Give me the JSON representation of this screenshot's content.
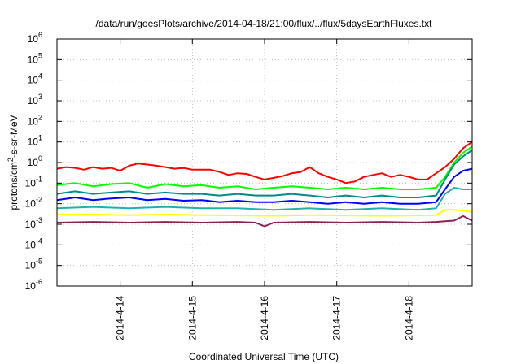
{
  "chart_data": {
    "type": "line",
    "title": "/data/run/goesPlots/archive/2014-04-18/21:00/flux/../flux/5daysEarthFluxes.txt",
    "xlabel": "Coordinated Universal Time (UTC)",
    "ylabel": {
      "base": "protons/cm",
      "sup": "2",
      "rest": "-s-sr-MeV"
    },
    "y_scale": "log",
    "ylim_exp": [
      -6,
      6
    ],
    "y_ticks": [
      {
        "exp": -6,
        "label_base": "10",
        "label_exp": "-6"
      },
      {
        "exp": -5,
        "label_base": "10",
        "label_exp": "-5"
      },
      {
        "exp": -4,
        "label_base": "10",
        "label_exp": "-4"
      },
      {
        "exp": -3,
        "label_base": "10",
        "label_exp": "-3"
      },
      {
        "exp": -2,
        "label_base": "10",
        "label_exp": "-2"
      },
      {
        "exp": -1,
        "label_base": "10",
        "label_exp": "-1"
      },
      {
        "exp": 0,
        "label_base": "10",
        "label_exp": "0"
      },
      {
        "exp": 1,
        "label_base": "10",
        "label_exp": "1"
      },
      {
        "exp": 2,
        "label_base": "10",
        "label_exp": "2"
      },
      {
        "exp": 3,
        "label_base": "10",
        "label_exp": "3"
      },
      {
        "exp": 4,
        "label_base": "10",
        "label_exp": "4"
      },
      {
        "exp": 5,
        "label_base": "10",
        "label_exp": "5"
      },
      {
        "exp": 6,
        "label_base": "10",
        "label_exp": "6"
      }
    ],
    "xlim": [
      "2014-04-13T03:00",
      "2014-04-18T21:00"
    ],
    "x_ticks": [
      {
        "value": "2014-04-14T00:00",
        "label": "2014-4-14"
      },
      {
        "value": "2014-04-15T00:00",
        "label": "2014-4-15"
      },
      {
        "value": "2014-04-16T00:00",
        "label": "2014-4-16"
      },
      {
        "value": "2014-04-17T00:00",
        "label": "2014-4-17"
      },
      {
        "value": "2014-04-18T00:00",
        "label": "2014-4-18"
      }
    ],
    "grid": true,
    "legend": "none",
    "series": [
      {
        "color": "#ff0000",
        "points": [
          [
            "2014-04-13T03:00",
            0.5
          ],
          [
            "2014-04-13T06:00",
            0.6
          ],
          [
            "2014-04-13T09:00",
            0.55
          ],
          [
            "2014-04-13T12:00",
            0.45
          ],
          [
            "2014-04-13T15:00",
            0.6
          ],
          [
            "2014-04-13T18:00",
            0.5
          ],
          [
            "2014-04-13T21:00",
            0.55
          ],
          [
            "2014-04-14T00:00",
            0.4
          ],
          [
            "2014-04-14T03:00",
            0.7
          ],
          [
            "2014-04-14T06:00",
            0.9
          ],
          [
            "2014-04-14T09:00",
            0.8
          ],
          [
            "2014-04-14T12:00",
            0.7
          ],
          [
            "2014-04-14T15:00",
            0.6
          ],
          [
            "2014-04-14T18:00",
            0.5
          ],
          [
            "2014-04-14T21:00",
            0.55
          ],
          [
            "2014-04-15T00:00",
            0.45
          ],
          [
            "2014-04-15T03:00",
            0.45
          ],
          [
            "2014-04-15T06:00",
            0.45
          ],
          [
            "2014-04-15T09:00",
            0.35
          ],
          [
            "2014-04-15T12:00",
            0.25
          ],
          [
            "2014-04-15T15:00",
            0.3
          ],
          [
            "2014-04-15T18:00",
            0.28
          ],
          [
            "2014-04-15T21:00",
            0.2
          ],
          [
            "2014-04-16T00:00",
            0.15
          ],
          [
            "2014-04-16T03:00",
            0.18
          ],
          [
            "2014-04-16T06:00",
            0.22
          ],
          [
            "2014-04-16T09:00",
            0.3
          ],
          [
            "2014-04-16T12:00",
            0.35
          ],
          [
            "2014-04-16T15:00",
            0.6
          ],
          [
            "2014-04-16T18:00",
            0.3
          ],
          [
            "2014-04-16T21:00",
            0.2
          ],
          [
            "2014-04-17T00:00",
            0.15
          ],
          [
            "2014-04-17T03:00",
            0.1
          ],
          [
            "2014-04-17T06:00",
            0.12
          ],
          [
            "2014-04-17T09:00",
            0.2
          ],
          [
            "2014-04-17T12:00",
            0.25
          ],
          [
            "2014-04-17T15:00",
            0.3
          ],
          [
            "2014-04-17T18:00",
            0.2
          ],
          [
            "2014-04-17T21:00",
            0.25
          ],
          [
            "2014-04-18T00:00",
            0.2
          ],
          [
            "2014-04-18T03:00",
            0.15
          ],
          [
            "2014-04-18T06:00",
            0.15
          ],
          [
            "2014-04-18T09:00",
            0.3
          ],
          [
            "2014-04-18T12:00",
            0.6
          ],
          [
            "2014-04-18T15:00",
            1.5
          ],
          [
            "2014-04-18T18:00",
            5
          ],
          [
            "2014-04-18T21:00",
            10
          ]
        ]
      },
      {
        "color": "#00ff00",
        "points": [
          [
            "2014-04-13T03:00",
            0.08
          ],
          [
            "2014-04-13T09:00",
            0.1
          ],
          [
            "2014-04-13T15:00",
            0.07
          ],
          [
            "2014-04-13T21:00",
            0.09
          ],
          [
            "2014-04-14T03:00",
            0.1
          ],
          [
            "2014-04-14T09:00",
            0.06
          ],
          [
            "2014-04-14T15:00",
            0.09
          ],
          [
            "2014-04-14T21:00",
            0.07
          ],
          [
            "2014-04-15T03:00",
            0.08
          ],
          [
            "2014-04-15T09:00",
            0.06
          ],
          [
            "2014-04-15T15:00",
            0.07
          ],
          [
            "2014-04-15T21:00",
            0.05
          ],
          [
            "2014-04-16T03:00",
            0.06
          ],
          [
            "2014-04-16T09:00",
            0.07
          ],
          [
            "2014-04-16T15:00",
            0.06
          ],
          [
            "2014-04-16T21:00",
            0.05
          ],
          [
            "2014-04-17T03:00",
            0.06
          ],
          [
            "2014-04-17T09:00",
            0.05
          ],
          [
            "2014-04-17T15:00",
            0.06
          ],
          [
            "2014-04-17T21:00",
            0.05
          ],
          [
            "2014-04-18T03:00",
            0.05
          ],
          [
            "2014-04-18T09:00",
            0.06
          ],
          [
            "2014-04-18T12:00",
            0.2
          ],
          [
            "2014-04-18T15:00",
            1
          ],
          [
            "2014-04-18T18:00",
            3
          ],
          [
            "2014-04-18T21:00",
            6
          ]
        ]
      },
      {
        "color": "#008b8b",
        "points": [
          [
            "2014-04-13T03:00",
            0.03
          ],
          [
            "2014-04-13T09:00",
            0.04
          ],
          [
            "2014-04-13T15:00",
            0.03
          ],
          [
            "2014-04-13T21:00",
            0.035
          ],
          [
            "2014-04-14T03:00",
            0.04
          ],
          [
            "2014-04-14T09:00",
            0.03
          ],
          [
            "2014-04-14T15:00",
            0.035
          ],
          [
            "2014-04-14T21:00",
            0.03
          ],
          [
            "2014-04-15T03:00",
            0.03
          ],
          [
            "2014-04-15T09:00",
            0.025
          ],
          [
            "2014-04-15T15:00",
            0.03
          ],
          [
            "2014-04-15T21:00",
            0.025
          ],
          [
            "2014-04-16T03:00",
            0.025
          ],
          [
            "2014-04-16T09:00",
            0.03
          ],
          [
            "2014-04-16T15:00",
            0.025
          ],
          [
            "2014-04-16T21:00",
            0.02
          ],
          [
            "2014-04-17T03:00",
            0.025
          ],
          [
            "2014-04-17T09:00",
            0.02
          ],
          [
            "2014-04-17T15:00",
            0.025
          ],
          [
            "2014-04-17T21:00",
            0.02
          ],
          [
            "2014-04-18T03:00",
            0.02
          ],
          [
            "2014-04-18T09:00",
            0.025
          ],
          [
            "2014-04-18T12:00",
            0.15
          ],
          [
            "2014-04-18T15:00",
            0.8
          ],
          [
            "2014-04-18T18:00",
            2
          ],
          [
            "2014-04-18T21:00",
            4
          ]
        ]
      },
      {
        "color": "#0000ff",
        "points": [
          [
            "2014-04-13T03:00",
            0.015
          ],
          [
            "2014-04-13T09:00",
            0.02
          ],
          [
            "2014-04-13T15:00",
            0.015
          ],
          [
            "2014-04-13T21:00",
            0.018
          ],
          [
            "2014-04-14T03:00",
            0.02
          ],
          [
            "2014-04-14T09:00",
            0.015
          ],
          [
            "2014-04-14T15:00",
            0.017
          ],
          [
            "2014-04-14T21:00",
            0.014
          ],
          [
            "2014-04-15T03:00",
            0.015
          ],
          [
            "2014-04-15T09:00",
            0.012
          ],
          [
            "2014-04-15T15:00",
            0.014
          ],
          [
            "2014-04-15T21:00",
            0.012
          ],
          [
            "2014-04-16T03:00",
            0.012
          ],
          [
            "2014-04-16T09:00",
            0.014
          ],
          [
            "2014-04-16T15:00",
            0.012
          ],
          [
            "2014-04-16T21:00",
            0.01
          ],
          [
            "2014-04-17T03:00",
            0.012
          ],
          [
            "2014-04-17T09:00",
            0.01
          ],
          [
            "2014-04-17T15:00",
            0.012
          ],
          [
            "2014-04-17T21:00",
            0.01
          ],
          [
            "2014-04-18T03:00",
            0.01
          ],
          [
            "2014-04-18T09:00",
            0.012
          ],
          [
            "2014-04-18T12:00",
            0.05
          ],
          [
            "2014-04-18T15:00",
            0.2
          ],
          [
            "2014-04-18T18:00",
            0.4
          ],
          [
            "2014-04-18T21:00",
            0.5
          ]
        ]
      },
      {
        "color": "#20b2aa",
        "points": [
          [
            "2014-04-13T03:00",
            0.006
          ],
          [
            "2014-04-13T15:00",
            0.007
          ],
          [
            "2014-04-14T03:00",
            0.006
          ],
          [
            "2014-04-14T15:00",
            0.007
          ],
          [
            "2014-04-15T03:00",
            0.006
          ],
          [
            "2014-04-15T15:00",
            0.006
          ],
          [
            "2014-04-16T03:00",
            0.005
          ],
          [
            "2014-04-16T15:00",
            0.006
          ],
          [
            "2014-04-17T03:00",
            0.005
          ],
          [
            "2014-04-17T15:00",
            0.006
          ],
          [
            "2014-04-18T03:00",
            0.005
          ],
          [
            "2014-04-18T09:00",
            0.006
          ],
          [
            "2014-04-18T12:00",
            0.03
          ],
          [
            "2014-04-18T15:00",
            0.06
          ],
          [
            "2014-04-18T18:00",
            0.05
          ],
          [
            "2014-04-18T21:00",
            0.05
          ]
        ]
      },
      {
        "color": "#ffff00",
        "points": [
          [
            "2014-04-13T03:00",
            0.003
          ],
          [
            "2014-04-13T15:00",
            0.003
          ],
          [
            "2014-04-14T03:00",
            0.0028
          ],
          [
            "2014-04-14T15:00",
            0.003
          ],
          [
            "2014-04-15T03:00",
            0.0028
          ],
          [
            "2014-04-15T15:00",
            0.0027
          ],
          [
            "2014-04-16T03:00",
            0.0026
          ],
          [
            "2014-04-16T15:00",
            0.0028
          ],
          [
            "2014-04-17T03:00",
            0.0027
          ],
          [
            "2014-04-17T15:00",
            0.0026
          ],
          [
            "2014-04-18T03:00",
            0.0027
          ],
          [
            "2014-04-18T09:00",
            0.0028
          ],
          [
            "2014-04-18T12:00",
            0.005
          ],
          [
            "2014-04-18T15:00",
            0.005
          ],
          [
            "2014-04-18T18:00",
            0.0045
          ],
          [
            "2014-04-18T21:00",
            0.004
          ]
        ]
      },
      {
        "color": "#8b2252",
        "points": [
          [
            "2014-04-13T03:00",
            0.0012
          ],
          [
            "2014-04-13T15:00",
            0.0013
          ],
          [
            "2014-04-14T03:00",
            0.0012
          ],
          [
            "2014-04-14T15:00",
            0.0013
          ],
          [
            "2014-04-15T03:00",
            0.0012
          ],
          [
            "2014-04-15T15:00",
            0.0013
          ],
          [
            "2014-04-15T21:00",
            0.0012
          ],
          [
            "2014-04-16T00:00",
            0.0008
          ],
          [
            "2014-04-16T03:00",
            0.0012
          ],
          [
            "2014-04-16T15:00",
            0.0013
          ],
          [
            "2014-04-17T03:00",
            0.0012
          ],
          [
            "2014-04-17T15:00",
            0.0013
          ],
          [
            "2014-04-18T03:00",
            0.0012
          ],
          [
            "2014-04-18T09:00",
            0.0013
          ],
          [
            "2014-04-18T12:00",
            0.0014
          ],
          [
            "2014-04-18T15:00",
            0.0015
          ],
          [
            "2014-04-18T18:00",
            0.0025
          ],
          [
            "2014-04-18T21:00",
            0.0015
          ]
        ]
      }
    ]
  }
}
